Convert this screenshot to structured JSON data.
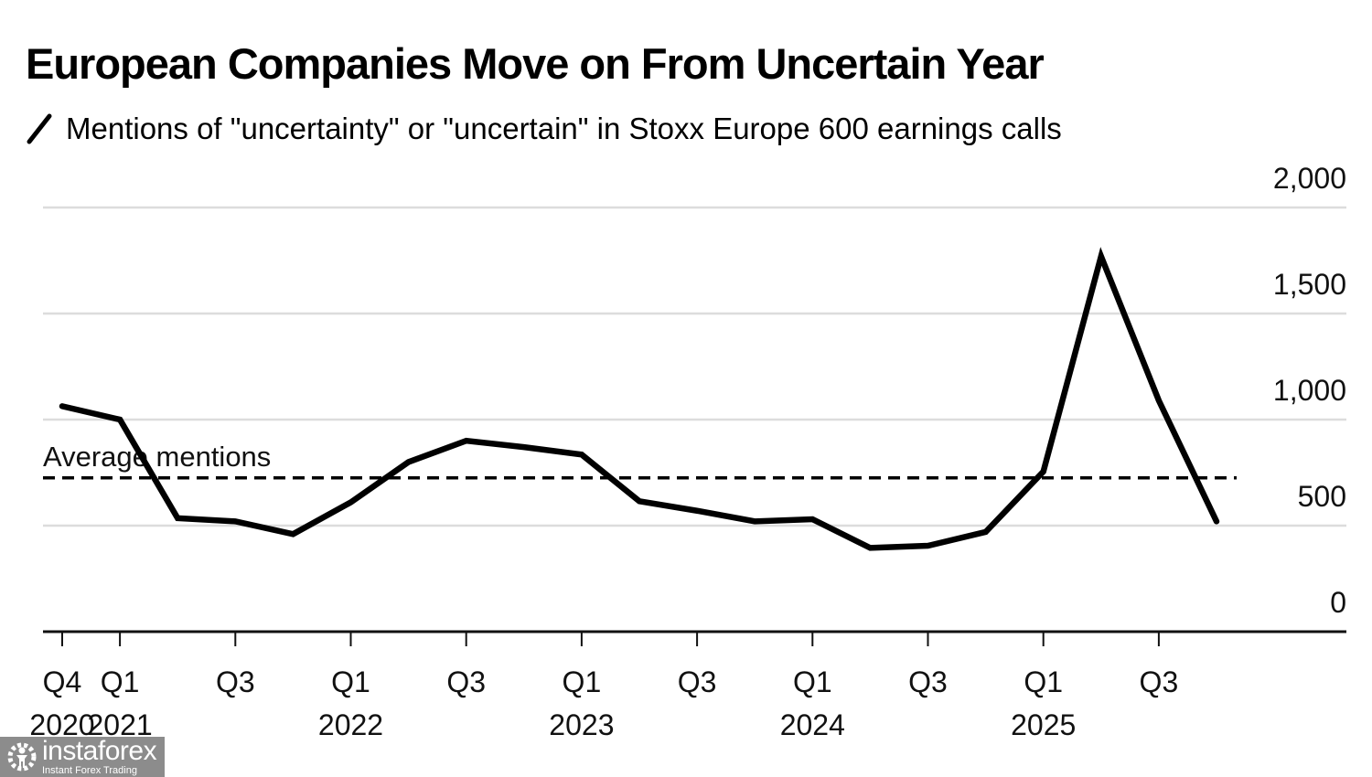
{
  "chart_data": {
    "type": "line",
    "title": "European Companies Move on From Uncertain Year",
    "legend": [
      {
        "name": "Mentions of \"uncertainty\" or \"uncertain\" in Stoxx Europe 600 earnings calls",
        "color": "#000000",
        "marker": "line"
      }
    ],
    "legend_placement": "top-left",
    "xlabel": "",
    "ylabel": "",
    "x": [
      "Q4 2020",
      "Q1 2021",
      "Q2 2021",
      "Q3 2021",
      "Q4 2021",
      "Q1 2022",
      "Q2 2022",
      "Q3 2022",
      "Q4 2022",
      "Q1 2023",
      "Q2 2023",
      "Q3 2023",
      "Q4 2023",
      "Q1 2024",
      "Q2 2024",
      "Q3 2024",
      "Q4 2024",
      "Q1 2025",
      "Q2 2025",
      "Q3 2025",
      "Q4 2025"
    ],
    "series": [
      {
        "name": "Mentions",
        "color": "#000000",
        "values": [
          1063,
          1000,
          535,
          520,
          460,
          610,
          800,
          900,
          870,
          835,
          615,
          570,
          520,
          530,
          395,
          405,
          470,
          755,
          1770,
          1090,
          520
        ]
      }
    ],
    "reference_lines": [
      {
        "label": "Average mentions",
        "value": 725,
        "style": "dashed"
      }
    ],
    "ylim": [
      0,
      2000
    ],
    "yticks": [
      0,
      500,
      1000,
      1500,
      2000
    ],
    "ytick_labels": [
      "0",
      "500",
      "1,000",
      "1,500",
      "2,000"
    ],
    "xticks": [
      {
        "index": 0,
        "quarter": "Q4",
        "year": "2020"
      },
      {
        "index": 1,
        "quarter": "Q1",
        "year": "2021"
      },
      {
        "index": 3,
        "quarter": "Q3",
        "year": ""
      },
      {
        "index": 5,
        "quarter": "Q1",
        "year": "2022"
      },
      {
        "index": 7,
        "quarter": "Q3",
        "year": ""
      },
      {
        "index": 9,
        "quarter": "Q1",
        "year": "2023"
      },
      {
        "index": 11,
        "quarter": "Q3",
        "year": ""
      },
      {
        "index": 13,
        "quarter": "Q1",
        "year": "2024"
      },
      {
        "index": 15,
        "quarter": "Q3",
        "year": ""
      },
      {
        "index": 17,
        "quarter": "Q1",
        "year": "2025"
      },
      {
        "index": 19,
        "quarter": "Q3",
        "year": ""
      }
    ],
    "grid": true,
    "y_axis_side": "right"
  },
  "watermark": {
    "brand": "instaforex",
    "tagline": "Instant Forex Trading",
    "icon": "gear-figure-icon"
  }
}
